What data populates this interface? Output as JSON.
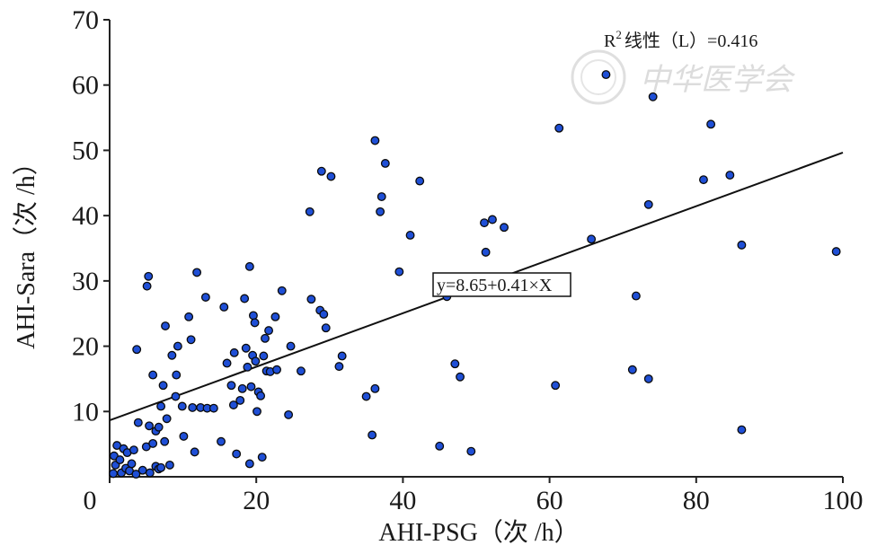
{
  "chart_data": {
    "type": "scatter",
    "xlabel": "AHI-PSG（次 /h）",
    "ylabel": "AHI-Sara（次 /h）",
    "xlim": [
      0,
      100
    ],
    "ylim": [
      0,
      70
    ],
    "xticks": [
      "0",
      "20",
      "40",
      "60",
      "80",
      "100"
    ],
    "yticks": [
      "10",
      "20",
      "30",
      "40",
      "50",
      "60",
      "70"
    ],
    "grid": false,
    "point_color": "#1f4fd6",
    "annotation_r2": {
      "prefix": "R",
      "sup": "2",
      "rest": "线性（L）=0.416"
    },
    "equation_label": "y=8.65+0.41×X",
    "fit_line": {
      "intercept": 8.65,
      "slope": 0.41
    },
    "watermark": "中华医学会",
    "points": [
      [
        0.5,
        0.5
      ],
      [
        0.8,
        1.8
      ],
      [
        0.6,
        3.2
      ],
      [
        1.0,
        4.8
      ],
      [
        1.4,
        2.6
      ],
      [
        1.6,
        0.6
      ],
      [
        1.9,
        4.3
      ],
      [
        2.2,
        1.3
      ],
      [
        2.4,
        3.7
      ],
      [
        2.7,
        0.9
      ],
      [
        3.0,
        2.0
      ],
      [
        3.3,
        4.1
      ],
      [
        3.6,
        0.4
      ],
      [
        4.5,
        1.0
      ],
      [
        5.0,
        4.6
      ],
      [
        5.5,
        0.6
      ],
      [
        5.9,
        5.1
      ],
      [
        6.3,
        1.6
      ],
      [
        6.7,
        1.2
      ],
      [
        7.0,
        1.4
      ],
      [
        7.5,
        5.4
      ],
      [
        8.2,
        1.8
      ],
      [
        3.7,
        19.5
      ],
      [
        3.9,
        8.3
      ],
      [
        5.4,
        7.8
      ],
      [
        5.9,
        15.6
      ],
      [
        6.3,
        7.0
      ],
      [
        6.7,
        7.6
      ],
      [
        7.0,
        10.8
      ],
      [
        7.3,
        14.0
      ],
      [
        7.6,
        23.1
      ],
      [
        7.8,
        8.9
      ],
      [
        8.5,
        18.6
      ],
      [
        9.0,
        12.3
      ],
      [
        9.1,
        15.6
      ],
      [
        9.3,
        20.0
      ],
      [
        9.9,
        10.8
      ],
      [
        10.1,
        6.2
      ],
      [
        10.8,
        24.5
      ],
      [
        11.1,
        21.0
      ],
      [
        11.3,
        10.6
      ],
      [
        11.6,
        3.8
      ],
      [
        11.9,
        31.3
      ],
      [
        12.4,
        10.6
      ],
      [
        13.1,
        27.5
      ],
      [
        13.3,
        10.5
      ],
      [
        14.2,
        10.5
      ],
      [
        5.1,
        29.2
      ],
      [
        5.3,
        30.7
      ],
      [
        15.2,
        5.4
      ],
      [
        15.6,
        26.0
      ],
      [
        16.0,
        17.4
      ],
      [
        16.6,
        14.0
      ],
      [
        16.9,
        11.0
      ],
      [
        17.0,
        19.0
      ],
      [
        17.3,
        3.5
      ],
      [
        17.8,
        11.7
      ],
      [
        18.1,
        13.5
      ],
      [
        18.4,
        27.3
      ],
      [
        18.6,
        19.7
      ],
      [
        18.8,
        16.8
      ],
      [
        19.1,
        32.2
      ],
      [
        19.1,
        2.0
      ],
      [
        19.3,
        13.8
      ],
      [
        19.5,
        18.6
      ],
      [
        19.6,
        24.7
      ],
      [
        19.8,
        23.6
      ],
      [
        19.9,
        17.7
      ],
      [
        20.1,
        10.0
      ],
      [
        20.3,
        13.0
      ],
      [
        20.6,
        12.4
      ],
      [
        20.8,
        3.0
      ],
      [
        21.0,
        18.5
      ],
      [
        21.2,
        21.2
      ],
      [
        21.4,
        16.2
      ],
      [
        21.7,
        22.4
      ],
      [
        21.9,
        16.1
      ],
      [
        22.6,
        24.5
      ],
      [
        22.8,
        16.4
      ],
      [
        23.5,
        28.5
      ],
      [
        24.4,
        9.5
      ],
      [
        24.7,
        20.0
      ],
      [
        26.1,
        16.2
      ],
      [
        27.3,
        40.6
      ],
      [
        27.5,
        27.2
      ],
      [
        28.7,
        25.5
      ],
      [
        29.2,
        24.9
      ],
      [
        29.5,
        22.8
      ],
      [
        28.9,
        46.8
      ],
      [
        30.2,
        46.0
      ],
      [
        31.3,
        16.9
      ],
      [
        31.7,
        18.5
      ],
      [
        35.0,
        12.3
      ],
      [
        35.8,
        6.4
      ],
      [
        36.2,
        51.5
      ],
      [
        36.2,
        13.5
      ],
      [
        36.9,
        40.6
      ],
      [
        37.1,
        42.9
      ],
      [
        37.6,
        48.0
      ],
      [
        39.5,
        31.4
      ],
      [
        41.0,
        37.0
      ],
      [
        42.3,
        45.3
      ],
      [
        45.0,
        4.7
      ],
      [
        46.0,
        27.6
      ],
      [
        47.1,
        17.3
      ],
      [
        47.8,
        15.3
      ],
      [
        49.3,
        3.9
      ],
      [
        51.1,
        38.9
      ],
      [
        51.3,
        34.4
      ],
      [
        52.2,
        39.4
      ],
      [
        53.8,
        38.2
      ],
      [
        60.8,
        14.0
      ],
      [
        61.3,
        53.4
      ],
      [
        65.7,
        36.4
      ],
      [
        67.7,
        61.6
      ],
      [
        71.3,
        16.4
      ],
      [
        71.8,
        27.7
      ],
      [
        73.5,
        41.7
      ],
      [
        73.5,
        15.0
      ],
      [
        74.1,
        58.2
      ],
      [
        81.0,
        45.5
      ],
      [
        82.0,
        54.0
      ],
      [
        84.6,
        46.2
      ],
      [
        86.2,
        35.5
      ],
      [
        86.2,
        7.2
      ],
      [
        99.1,
        34.5
      ]
    ]
  }
}
